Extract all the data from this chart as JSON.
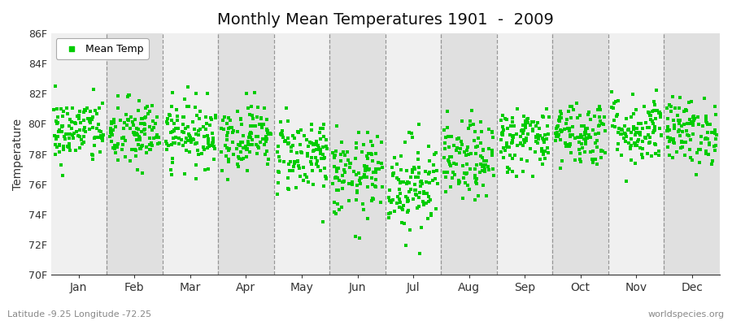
{
  "title": "Monthly Mean Temperatures 1901  -  2009",
  "ylabel": "Temperature",
  "xlabel_labels": [
    "Jan",
    "Feb",
    "Mar",
    "Apr",
    "May",
    "Jun",
    "Jul",
    "Aug",
    "Sep",
    "Oct",
    "Nov",
    "Dec"
  ],
  "ytick_labels": [
    "70F",
    "72F",
    "74F",
    "76F",
    "78F",
    "80F",
    "82F",
    "84F",
    "86F"
  ],
  "ytick_values": [
    70,
    72,
    74,
    76,
    78,
    80,
    82,
    84,
    86
  ],
  "ylim": [
    70,
    86
  ],
  "marker_color": "#00CC00",
  "legend_label": "Mean Temp",
  "footer_left": "Latitude -9.25 Longitude -72.25",
  "footer_right": "worldspecies.org",
  "bg_color": "#FFFFFF",
  "band_color_light": "#F0F0F0",
  "band_color_dark": "#E0E0E0",
  "num_years": 109,
  "seed": 42,
  "monthly_means": [
    79.5,
    79.3,
    79.4,
    79.2,
    78.0,
    76.5,
    76.0,
    77.5,
    79.0,
    79.4,
    79.6,
    79.5
  ],
  "monthly_stds": [
    1.1,
    1.2,
    1.1,
    1.1,
    1.3,
    1.4,
    1.6,
    1.3,
    1.1,
    1.1,
    1.2,
    1.1
  ]
}
